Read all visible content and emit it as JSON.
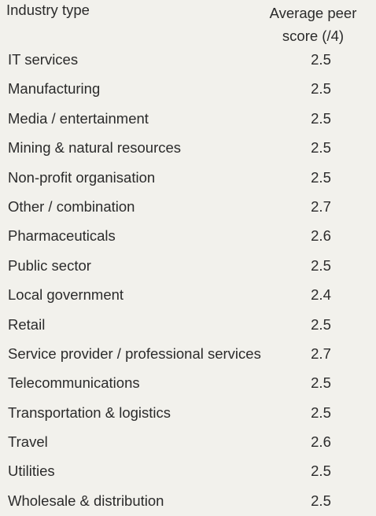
{
  "table": {
    "header": {
      "industry": "Industry type",
      "score": "Average peer score (/4)"
    }
  },
  "chart_data": {
    "type": "table",
    "columns": [
      "Industry type",
      "Average peer score (/4)"
    ],
    "rows": [
      {
        "industry": "IT services",
        "score": "2.5"
      },
      {
        "industry": "Manufacturing",
        "score": "2.5"
      },
      {
        "industry": "Media / entertainment",
        "score": "2.5"
      },
      {
        "industry": "Mining & natural resources",
        "score": "2.5"
      },
      {
        "industry": "Non-profit organisation",
        "score": "2.5"
      },
      {
        "industry": "Other / combination",
        "score": "2.7"
      },
      {
        "industry": "Pharmaceuticals",
        "score": "2.6"
      },
      {
        "industry": "Public sector",
        "score": "2.5"
      },
      {
        "industry": "Local government",
        "score": "2.4"
      },
      {
        "industry": "Retail",
        "score": "2.5"
      },
      {
        "industry": "Service provider / professional services",
        "score": "2.7"
      },
      {
        "industry": "Telecommunications",
        "score": "2.5"
      },
      {
        "industry": "Transportation & logistics",
        "score": "2.5"
      },
      {
        "industry": "Travel",
        "score": "2.6"
      },
      {
        "industry": "Utilities",
        "score": "2.5"
      },
      {
        "industry": "Wholesale & distribution",
        "score": "2.5"
      }
    ]
  }
}
